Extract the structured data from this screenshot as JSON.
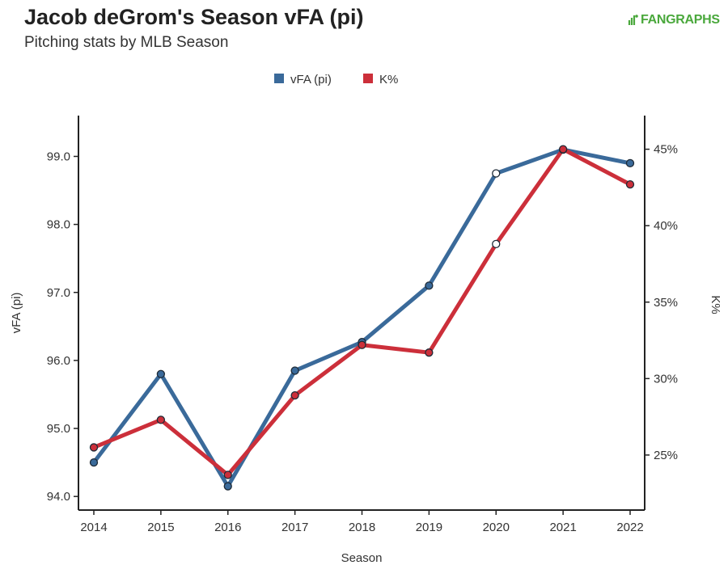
{
  "title": "Jacob deGrom's Season vFA (pi)",
  "subtitle": "Pitching stats by MLB Season",
  "logo_text": "FANGRAPHS",
  "colors": {
    "vfa": "#3a6a9a",
    "k": "#cc2f3a",
    "logo": "#4aa83c"
  },
  "chart_data": {
    "type": "line",
    "x": [
      "2014",
      "2015",
      "2016",
      "2017",
      "2018",
      "2019",
      "2020",
      "2021",
      "2022"
    ],
    "xlabel": "Season",
    "ylabel": "vFA (pi)",
    "y2label": "K%",
    "ylim": [
      93.8,
      99.6
    ],
    "y2lim": [
      21.4,
      47.2
    ],
    "yticks": [
      "94.0",
      "95.0",
      "96.0",
      "97.0",
      "98.0",
      "99.0"
    ],
    "y2ticks": [
      "25%",
      "30%",
      "35%",
      "40%",
      "45%"
    ],
    "legend": "top-center",
    "grid": false,
    "series": [
      {
        "name": "vFA (pi)",
        "axis": "left",
        "color": "#3a6a9a",
        "values": [
          94.5,
          95.8,
          94.15,
          95.85,
          96.27,
          97.1,
          98.75,
          99.1,
          98.9
        ]
      },
      {
        "name": "K%",
        "axis": "right",
        "color": "#cc2f3a",
        "values": [
          25.5,
          27.3,
          23.7,
          28.9,
          32.2,
          31.7,
          38.8,
          45.0,
          42.7
        ]
      }
    ],
    "open_points_year": "2020"
  }
}
